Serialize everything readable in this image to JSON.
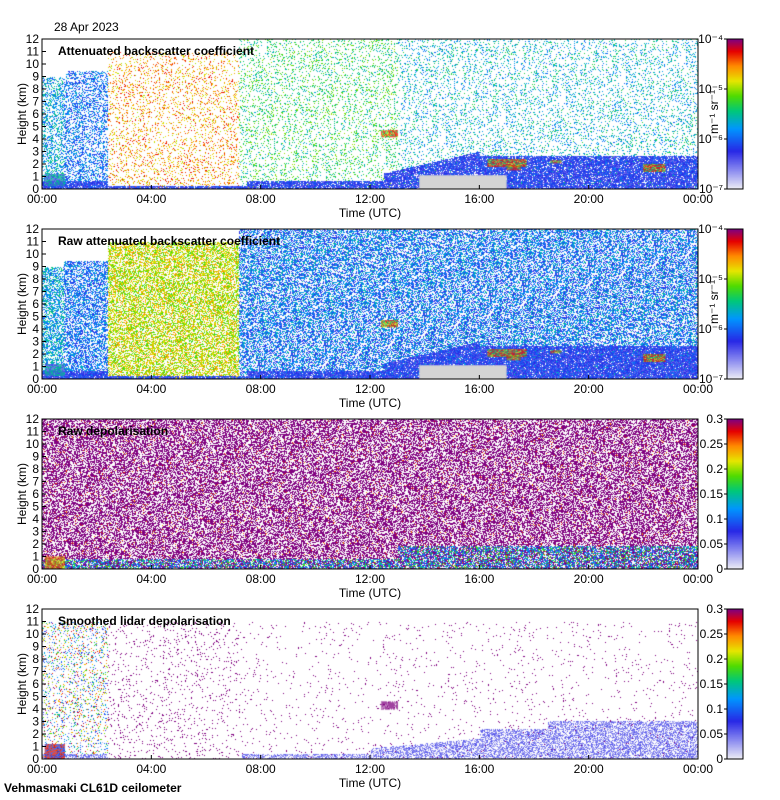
{
  "date": "28 Apr 2023",
  "footer": "Vehmasmaki CL61D ceilometer",
  "chart_data": [
    {
      "type": "heatmap",
      "title": "Attenuated backscatter coefficient",
      "xlabel": "Time (UTC)",
      "ylabel": "Height (km)",
      "x_ticks": [
        "00:00",
        "04:00",
        "08:00",
        "12:00",
        "16:00",
        "20:00",
        "00:00"
      ],
      "y_ticks": [
        "0",
        "1",
        "2",
        "3",
        "4",
        "5",
        "6",
        "7",
        "8",
        "9",
        "10",
        "11",
        "12"
      ],
      "ylim": [
        0,
        12
      ],
      "colorbar": {
        "scale": "log",
        "unit": "m⁻¹ sr⁻¹",
        "ticks": [
          "10⁻⁴",
          "10⁻⁵",
          "10⁻⁶",
          "10⁻⁷"
        ]
      },
      "mode": "atten"
    },
    {
      "type": "heatmap",
      "title": "Raw attenuated backscatter coefficient",
      "xlabel": "Time (UTC)",
      "ylabel": "Height (km)",
      "x_ticks": [
        "00:00",
        "04:00",
        "08:00",
        "12:00",
        "16:00",
        "20:00",
        "00:00"
      ],
      "y_ticks": [
        "0",
        "1",
        "2",
        "3",
        "4",
        "5",
        "6",
        "7",
        "8",
        "9",
        "10",
        "11",
        "12"
      ],
      "ylim": [
        0,
        12
      ],
      "colorbar": {
        "scale": "log",
        "unit": "m⁻¹ sr⁻¹",
        "ticks": [
          "10⁻⁴",
          "10⁻⁵",
          "10⁻⁶",
          "10⁻⁷"
        ]
      },
      "mode": "raw"
    },
    {
      "type": "heatmap",
      "title": "Raw depolarisation",
      "xlabel": "Time (UTC)",
      "ylabel": "Height (km)",
      "x_ticks": [
        "00:00",
        "04:00",
        "08:00",
        "12:00",
        "16:00",
        "20:00",
        "00:00"
      ],
      "y_ticks": [
        "0",
        "1",
        "2",
        "3",
        "4",
        "5",
        "6",
        "7",
        "8",
        "9",
        "10",
        "11",
        "12"
      ],
      "ylim": [
        0,
        12
      ],
      "colorbar": {
        "scale": "linear",
        "unit": "",
        "ticks": [
          "0.3",
          "0.25",
          "0.2",
          "0.15",
          "0.1",
          "0.05",
          "0"
        ]
      },
      "mode": "rawdepol"
    },
    {
      "type": "heatmap",
      "title": "Smoothed lidar depolarisation",
      "xlabel": "Time (UTC)",
      "ylabel": "Height (km)",
      "x_ticks": [
        "00:00",
        "04:00",
        "08:00",
        "12:00",
        "16:00",
        "20:00",
        "00:00"
      ],
      "y_ticks": [
        "0",
        "1",
        "2",
        "3",
        "4",
        "5",
        "6",
        "7",
        "8",
        "9",
        "10",
        "11",
        "12"
      ],
      "ylim": [
        0,
        12
      ],
      "colorbar": {
        "scale": "linear",
        "unit": "",
        "ticks": [
          "0.3",
          "0.25",
          "0.2",
          "0.15",
          "0.1",
          "0.05",
          "0"
        ]
      },
      "mode": "smooth"
    }
  ]
}
